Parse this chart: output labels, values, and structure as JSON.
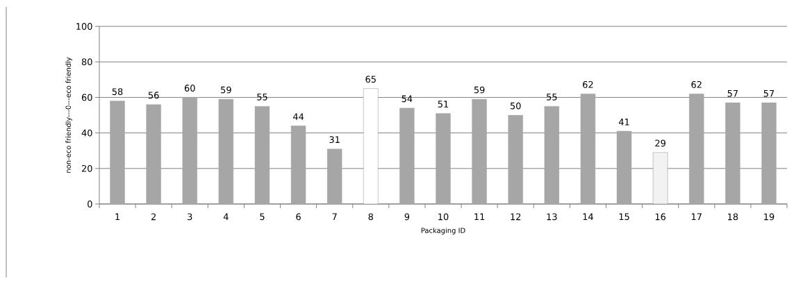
{
  "chart_data": {
    "type": "bar",
    "xlabel": "Packaging ID",
    "ylabel": "non-eco friendly---0---eco friendly",
    "categories": [
      "1",
      "2",
      "3",
      "4",
      "5",
      "6",
      "7",
      "8",
      "9",
      "10",
      "11",
      "12",
      "13",
      "14",
      "15",
      "16",
      "17",
      "18",
      "19"
    ],
    "values": [
      58,
      56,
      60,
      59,
      55,
      44,
      31,
      65,
      54,
      51,
      59,
      50,
      55,
      62,
      41,
      29,
      62,
      57,
      57
    ],
    "colors": [
      "#a6a6a6",
      "#a6a6a6",
      "#a6a6a6",
      "#a6a6a6",
      "#a6a6a6",
      "#a6a6a6",
      "#a6a6a6",
      "#ffffff",
      "#a6a6a6",
      "#a6a6a6",
      "#a6a6a6",
      "#a6a6a6",
      "#a6a6a6",
      "#a6a6a6",
      "#a6a6a6",
      "#f2f2f2",
      "#a6a6a6",
      "#a6a6a6",
      "#a6a6a6"
    ],
    "ylim": [
      0,
      100
    ],
    "yticks": [
      0,
      20,
      40,
      60,
      80,
      100
    ],
    "grid": "y",
    "data_labels": true
  }
}
